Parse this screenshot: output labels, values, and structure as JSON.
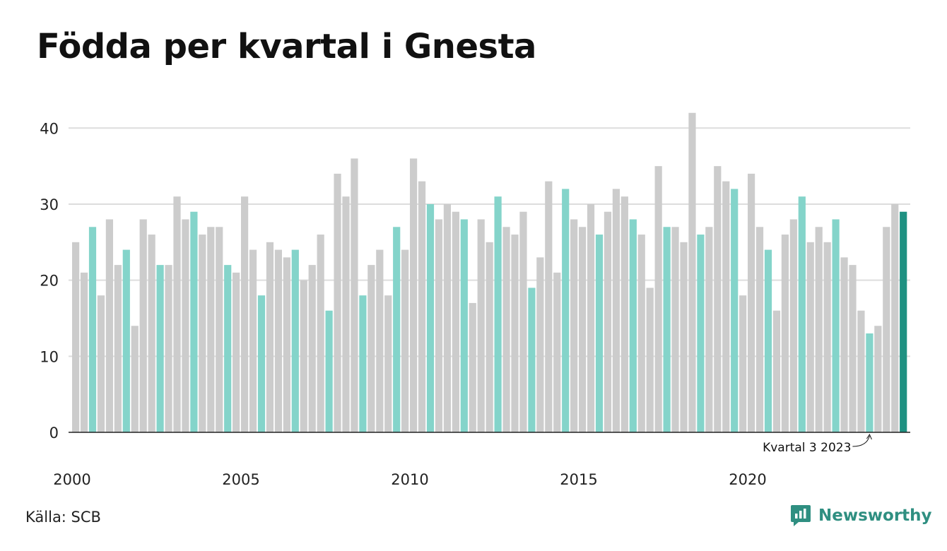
{
  "title": "Födda per kvartal i Gnesta",
  "source": "Källa: SCB",
  "brand": {
    "name": "Newsworthy",
    "icon": "newsworthy-logo-icon"
  },
  "colors": {
    "default_bar": "#cccccc",
    "highlight_bar": "#84d4ca",
    "latest_bar": "#1f9182",
    "grid": "#dddddd",
    "axis": "#222222"
  },
  "chart_data": {
    "type": "bar",
    "start_period": "2000 Q1",
    "values": [
      25,
      21,
      27,
      18,
      28,
      22,
      24,
      14,
      28,
      26,
      22,
      22,
      31,
      28,
      29,
      26,
      27,
      27,
      22,
      21,
      31,
      24,
      18,
      25,
      24,
      23,
      24,
      20,
      22,
      26,
      16,
      34,
      31,
      36,
      18,
      22,
      24,
      18,
      27,
      24,
      36,
      33,
      30,
      28,
      30,
      29,
      28,
      17,
      28,
      25,
      31,
      27,
      26,
      29,
      19,
      23,
      33,
      21,
      32,
      28,
      27,
      30,
      26,
      29,
      32,
      31,
      28,
      26,
      19,
      35,
      27,
      27,
      25,
      42,
      26,
      27,
      35,
      33,
      32,
      18,
      34,
      27,
      24,
      16,
      26,
      28,
      31,
      25,
      27,
      25,
      28,
      23,
      22,
      16,
      13,
      14,
      27,
      30,
      29
    ],
    "highlight": "Kvartal 3",
    "x_tick_labels": [
      "2000",
      "2005",
      "2010",
      "2015",
      "2020"
    ],
    "y_ticks": [
      0,
      10,
      20,
      30,
      40
    ],
    "ylim": [
      0,
      43
    ],
    "annotation": {
      "text": "Kvartal 3 2023",
      "target_period": "2023 Q3"
    },
    "grid": true
  }
}
